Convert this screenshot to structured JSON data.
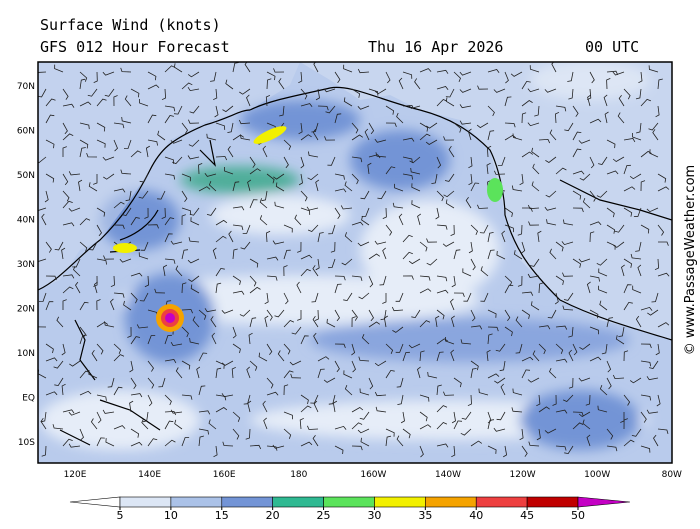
{
  "header": {
    "title": "Surface Wind (knots)",
    "subtitle": "GFS 012 Hour Forecast",
    "date": "Thu 16 Apr 2026",
    "time": "00 UTC"
  },
  "map": {
    "lat_labels": [
      "70N",
      "60N",
      "50N",
      "40N",
      "30N",
      "20N",
      "10N",
      "EQ",
      "10S"
    ],
    "lon_labels": [
      "120E",
      "140E",
      "160E",
      "180",
      "160W",
      "140W",
      "120W",
      "100W",
      "80W"
    ]
  },
  "colorbar": {
    "ticks": [
      5,
      10,
      15,
      20,
      25,
      30,
      35,
      40,
      45,
      50
    ],
    "colors": [
      "#ffffff",
      "#dce6f5",
      "#abc2e8",
      "#7394d6",
      "#2fb992",
      "#5be35b",
      "#f2f000",
      "#f5a300",
      "#ee4040",
      "#c00000",
      "#c400c4"
    ]
  },
  "watermark": "© www.PassageWeather.com"
}
